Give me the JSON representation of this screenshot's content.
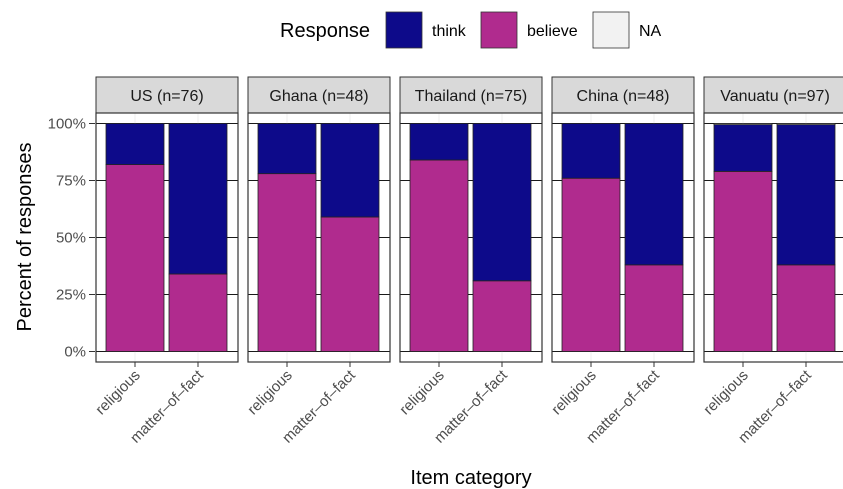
{
  "chart_data": {
    "type": "bar",
    "stacked": true,
    "facet": "panel",
    "legend": {
      "title": "Response",
      "position": "top",
      "entries": [
        {
          "label": "think",
          "color": "#0d0a8a"
        },
        {
          "label": "believe",
          "color": "#b02b8e"
        },
        {
          "label": "NA",
          "color": "#f2f2f2"
        }
      ]
    },
    "xlabel": "Item category",
    "ylabel": "Percent of responses",
    "yticks": [
      "0%",
      "25%",
      "50%",
      "75%",
      "100%"
    ],
    "ylim": [
      0,
      100
    ],
    "categories": [
      "religious",
      "matter–of–fact"
    ],
    "grid": true,
    "panels": [
      {
        "label": "US (n=76)",
        "bars": [
          {
            "category": "religious",
            "believe": 82,
            "think": 18,
            "na": 0
          },
          {
            "category": "matter–of–fact",
            "believe": 34,
            "think": 66,
            "na": 0
          }
        ]
      },
      {
        "label": "Ghana (n=48)",
        "bars": [
          {
            "category": "religious",
            "believe": 78,
            "think": 22,
            "na": 0
          },
          {
            "category": "matter–of–fact",
            "believe": 59,
            "think": 41,
            "na": 0
          }
        ]
      },
      {
        "label": "Thailand (n=75)",
        "bars": [
          {
            "category": "religious",
            "believe": 84,
            "think": 16,
            "na": 0
          },
          {
            "category": "matter–of–fact",
            "believe": 31,
            "think": 69,
            "na": 0
          }
        ]
      },
      {
        "label": "China (n=48)",
        "bars": [
          {
            "category": "religious",
            "believe": 76,
            "think": 24,
            "na": 0
          },
          {
            "category": "matter–of–fact",
            "believe": 38,
            "think": 62,
            "na": 0
          }
        ]
      },
      {
        "label": "Vanuatu (n=97)",
        "bars": [
          {
            "category": "religious",
            "believe": 79,
            "think": 20.5,
            "na": 0.5
          },
          {
            "category": "matter–of–fact",
            "believe": 38,
            "think": 61.5,
            "na": 0.5
          }
        ]
      }
    ]
  }
}
